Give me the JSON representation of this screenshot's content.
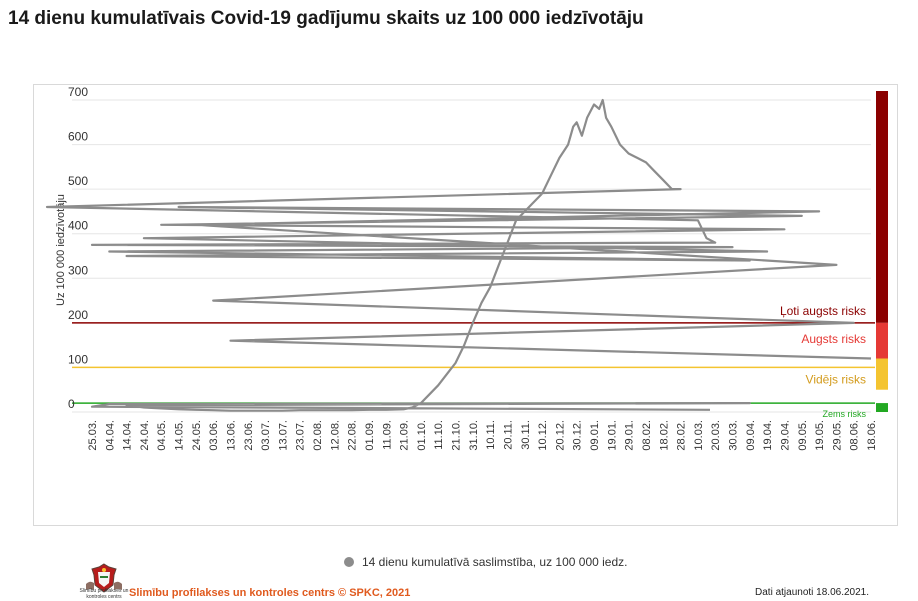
{
  "page": {
    "title": "14 dienu kumulatīvais Covid-19 gadījumu skaits uz 100 000 iedzīvotāju"
  },
  "footer": {
    "organization": "Slimību profilakses un kontroles centrs © SPKC, 2021",
    "updated": "Dati atjaunoti 18.06.2021.",
    "logo_text": "Slimību profilakses un kontroles centrs"
  },
  "chart_data": {
    "type": "line",
    "title": "14 dienu kumulatīvais Covid-19 gadījumu skaits uz 100 000 iedzīvotāju",
    "xlabel": "",
    "ylabel": "Uz 100 000 iedzīvotāju",
    "ylim": [
      0,
      700
    ],
    "yticks": [
      0,
      100,
      200,
      300,
      400,
      500,
      600,
      700
    ],
    "grid": true,
    "legend_position": "bottom-center",
    "colors": {
      "series": "#8c8c8c",
      "very_high": "#8b0000",
      "high": "#e53935",
      "medium": "#f4c430",
      "low": "#22a822",
      "grid": "#e6e6e6"
    },
    "x_tick_labels": [
      "25.03.",
      "04.04.",
      "14.04.",
      "24.04.",
      "04.05.",
      "14.05.",
      "24.05.",
      "03.06.",
      "13.06.",
      "23.06.",
      "03.07.",
      "13.07.",
      "23.07.",
      "02.08.",
      "12.08.",
      "22.08.",
      "01.09.",
      "11.09.",
      "21.09.",
      "01.10.",
      "11.10.",
      "21.10.",
      "31.10.",
      "10.11.",
      "20.11.",
      "30.11.",
      "10.12.",
      "20.12.",
      "30.12.",
      "09.01.",
      "19.01.",
      "29.01.",
      "08.02.",
      "18.02.",
      "28.02.",
      "10.03.",
      "20.03.",
      "30.03.",
      "09.04.",
      "19.04.",
      "29.04.",
      "09.05.",
      "19.05.",
      "29.05.",
      "08.06.",
      "18.06."
    ],
    "thresholds": [
      {
        "label": "Ļoti augsts risks",
        "value": 200,
        "range": [
          200,
          700
        ]
      },
      {
        "label": "Augsts risks",
        "value": 100,
        "range": [
          120,
          200
        ]
      },
      {
        "label": "Vidējs risks",
        "value": 20,
        "range": [
          50,
          120
        ]
      },
      {
        "label": "Zems risks",
        "value": 0,
        "range": [
          0,
          20
        ]
      }
    ],
    "series": [
      {
        "name": "14 dienu kumulatīvā saslimstība, uz 100 000 iedz.",
        "x": [
          "17.03.",
          "25.03.",
          "04.04.",
          "09.04.",
          "14.04.",
          "24.04.",
          "04.05.",
          "14.05.",
          "24.05.",
          "03.06.",
          "13.06.",
          "23.06.",
          "03.07.",
          "13.07.",
          "23.07.",
          "02.08.",
          "12.08.",
          "22.08.",
          "01.09.",
          "11.09.",
          "21.09.",
          "26.09.",
          "01.10.",
          "06.10.",
          "11.10.",
          "16.10.",
          "21.10.",
          "26.10.",
          "31.10.",
          "05.11.",
          "10.11.",
          "15.11.",
          "20.11.",
          "25.11.",
          "30.11.",
          "05.12.",
          "10.12.",
          "15.12.",
          "20.12.",
          "25.12.",
          "28.12.",
          "30.12.",
          "02.01.",
          "05.01.",
          "09.01.",
          "12.01.",
          "14.01.",
          "16.01.",
          "19.01.",
          "24.01.",
          "29.01.",
          "03.02.",
          "08.02.",
          "13.02.",
          "18.02.",
          "23.02.",
          "28.02.",
          "05.03.",
          "10.03.",
          "15.03.",
          "20.03.",
          "25.03.",
          "30.03.",
          "04.04.",
          "09.04.",
          "14.04.",
          "19.04.",
          "24.04.",
          "29.04.",
          "04.05.",
          "09.05.",
          "14.05.",
          "19.05.",
          "24.05.",
          "29.05.",
          "03.06.",
          "08.06.",
          "13.06.",
          "18.06."
        ],
        "values": [
          5,
          12,
          18,
          20,
          15,
          10,
          8,
          6,
          5,
          4,
          3,
          3,
          3,
          3,
          4,
          4,
          4,
          4,
          5,
          5,
          6,
          10,
          20,
          40,
          60,
          85,
          110,
          150,
          200,
          245,
          280,
          330,
          380,
          430,
          450,
          470,
          490,
          530,
          570,
          600,
          640,
          650,
          620,
          660,
          690,
          680,
          700,
          660,
          640,
          600,
          580,
          570,
          560,
          540,
          520,
          500,
          500,
          460,
          430,
          390,
          380,
          375,
          370,
          360,
          340,
          350,
          360,
          390,
          410,
          420,
          440,
          460,
          450,
          420,
          330,
          250,
          200,
          160,
          120
        ]
      }
    ]
  }
}
